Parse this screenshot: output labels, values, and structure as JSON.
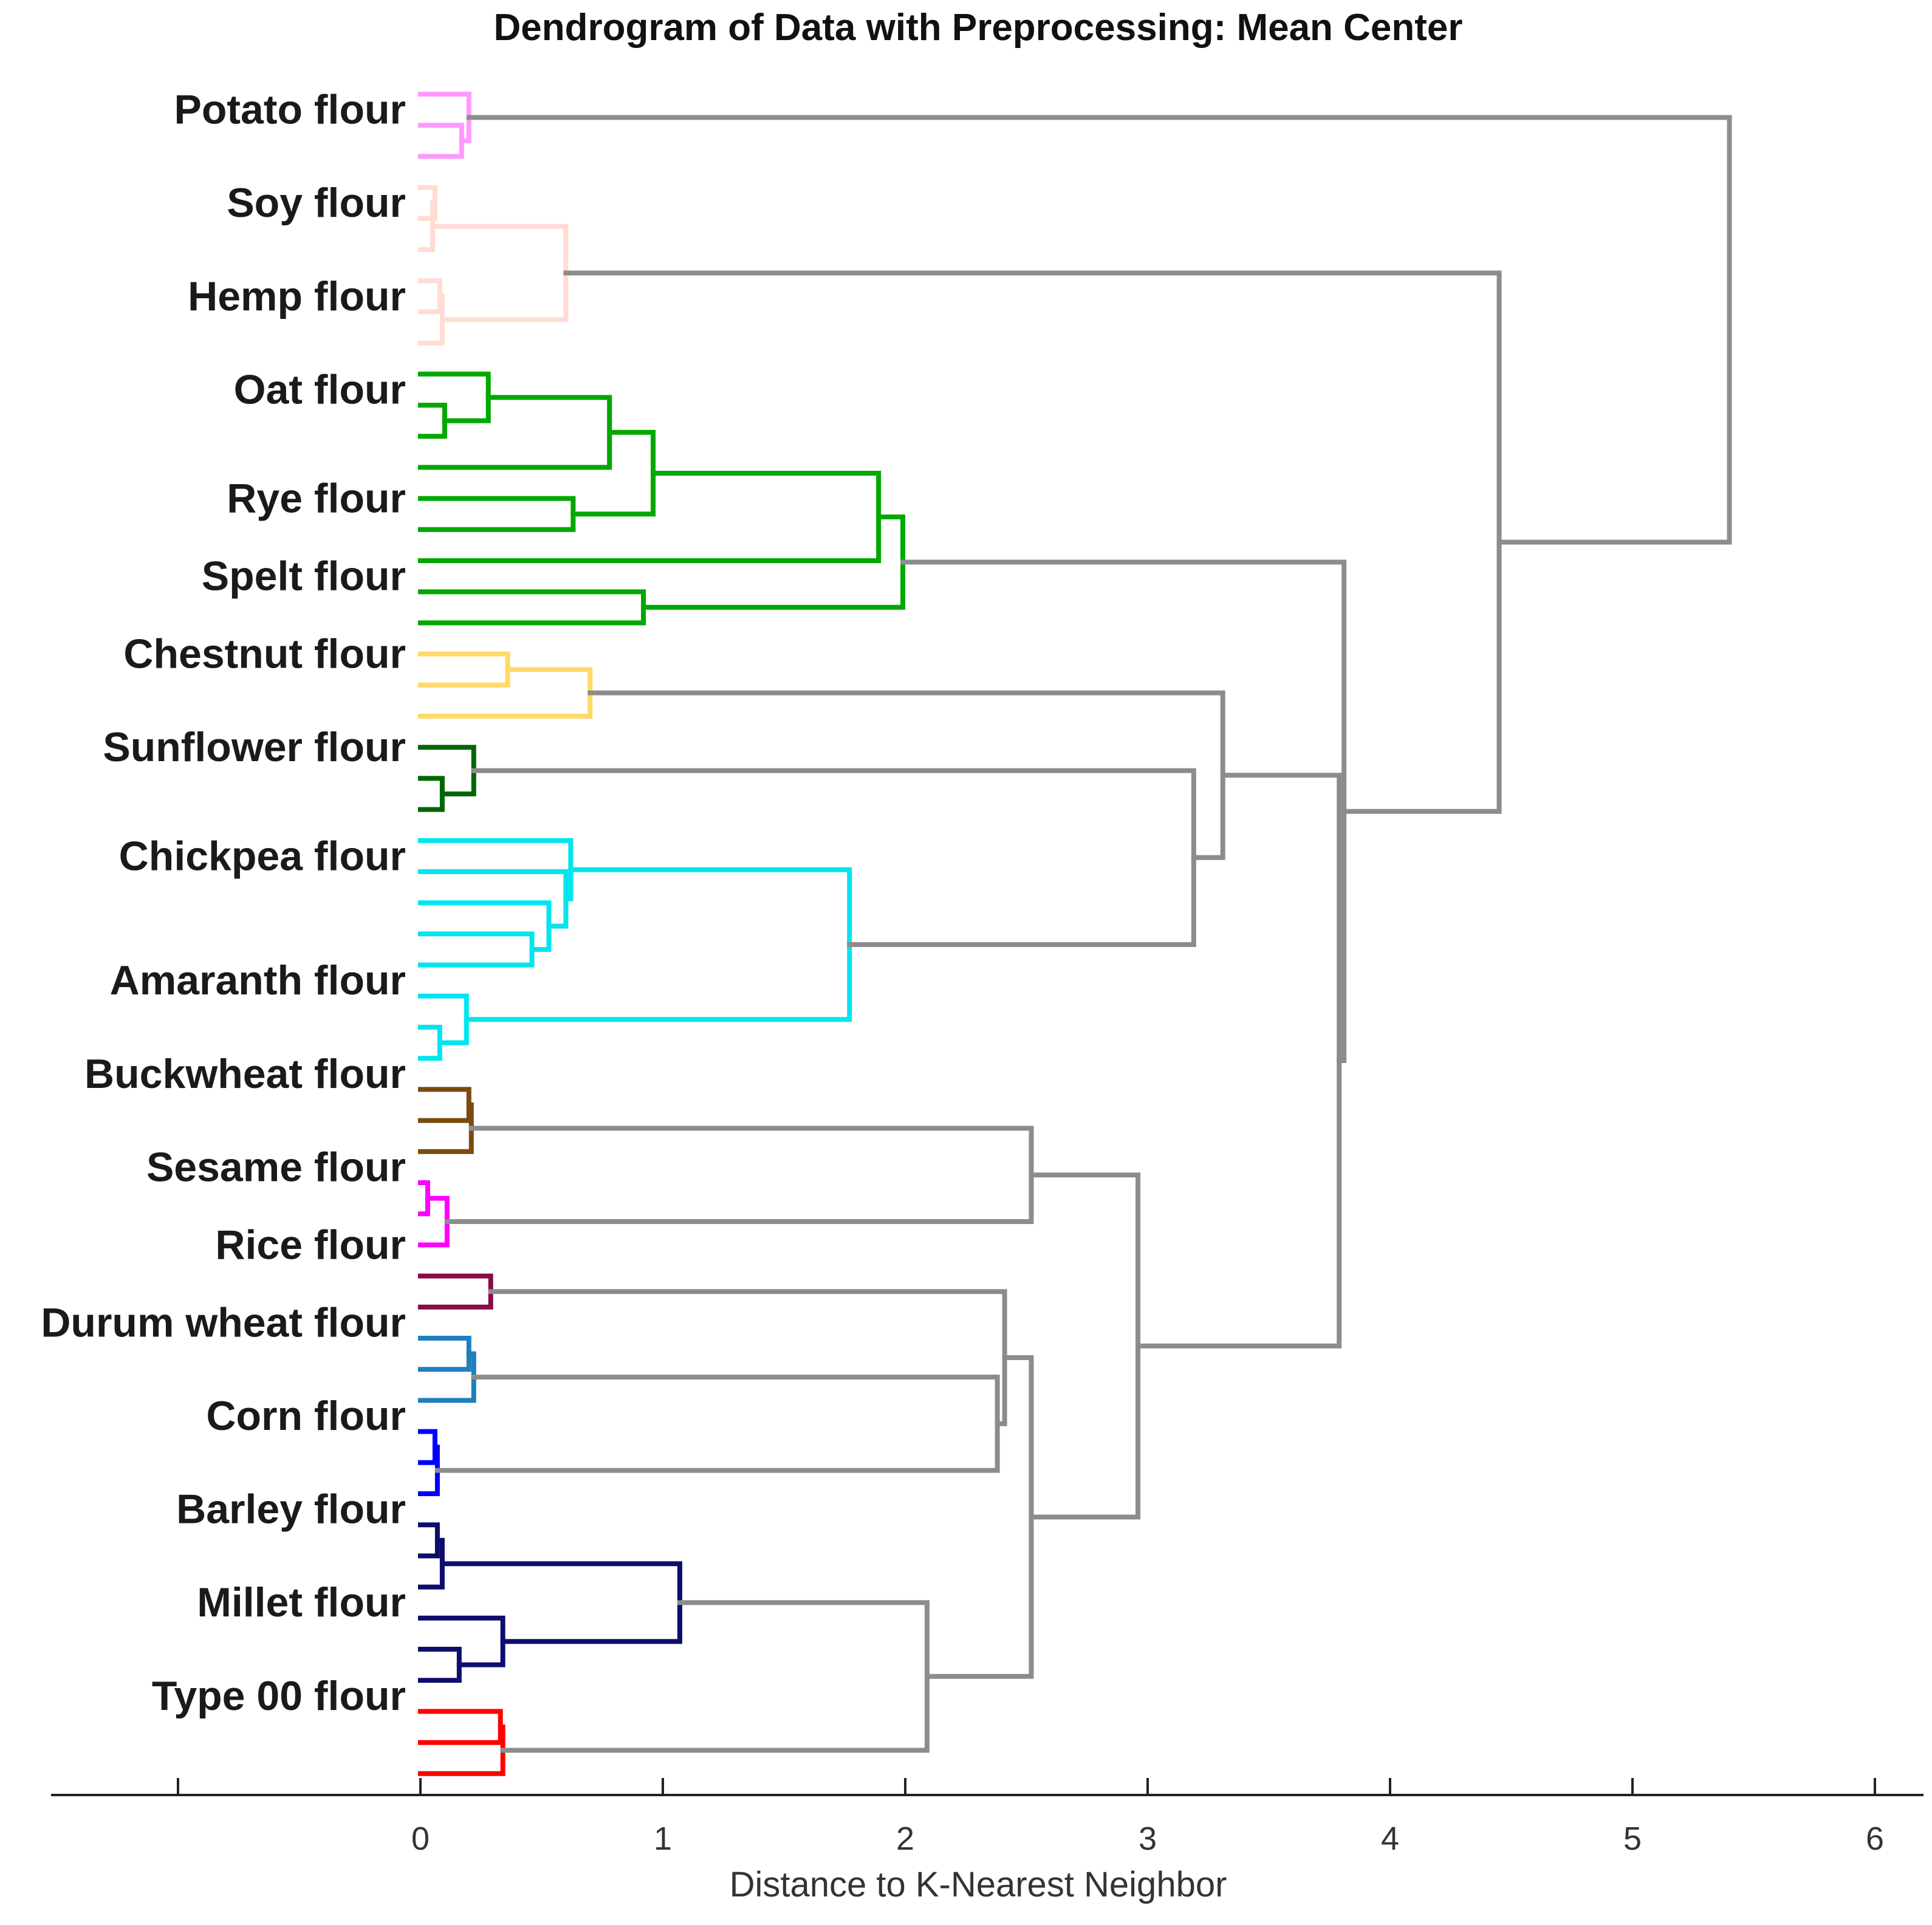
{
  "chart_data": {
    "type": "dendrogram",
    "title": "Dendrogram of Data with Preprocessing: Mean Center",
    "xlabel": "Distance to K-Nearest Neighbor",
    "ylabel": "",
    "xlim": [
      -1.5,
      6.2
    ],
    "xticks": [
      {
        "value": 0,
        "label": "0"
      },
      {
        "value": 1,
        "label": "1"
      },
      {
        "value": 2,
        "label": "2"
      },
      {
        "value": 3,
        "label": "3"
      },
      {
        "value": 4,
        "label": "4"
      },
      {
        "value": 5,
        "label": "5"
      },
      {
        "value": 6,
        "label": "6"
      }
    ],
    "link_color": "#8c8c8c",
    "leaf_labels": [
      {
        "text": "Potato flour",
        "leaf": 1.5
      },
      {
        "text": "Soy flour",
        "leaf": 4.5
      },
      {
        "text": "Hemp flour",
        "leaf": 7.5
      },
      {
        "text": "Oat flour",
        "leaf": 10.5
      },
      {
        "text": "Rye flour",
        "leaf": 14.0
      },
      {
        "text": "Spelt flour",
        "leaf": 16.5
      },
      {
        "text": "Chestnut flour",
        "leaf": 19.0
      },
      {
        "text": "Sunflower flour",
        "leaf": 22.0
      },
      {
        "text": "Chickpea flour",
        "leaf": 25.5
      },
      {
        "text": "Amaranth flour",
        "leaf": 29.5
      },
      {
        "text": "Buckwheat flour",
        "leaf": 32.5
      },
      {
        "text": "Sesame flour",
        "leaf": 35.5
      },
      {
        "text": "Rice flour",
        "leaf": 38.0
      },
      {
        "text": "Durum wheat flour",
        "leaf": 40.5
      },
      {
        "text": "Corn flour",
        "leaf": 43.5
      },
      {
        "text": "Barley flour",
        "leaf": 46.5
      },
      {
        "text": "Millet flour",
        "leaf": 49.5
      },
      {
        "text": "Type 00 flour",
        "leaf": 52.5
      }
    ],
    "clusters": [
      {
        "name": "Potato flour",
        "color": "#ff99ff",
        "leaves": [
          1,
          2,
          3
        ],
        "merges": [
          {
            "height": 0.17,
            "children": [
              {
                "leaf": 2
              },
              {
                "leaf": 3
              }
            ]
          },
          {
            "height": 0.2,
            "children": [
              {
                "leaf": 1
              },
              {
                "merge": 0
              }
            ]
          }
        ]
      },
      {
        "name": "Soy flour / Hemp flour",
        "color": "#ffdcd4",
        "leaves": [
          4,
          5,
          6,
          7,
          8,
          9
        ],
        "merges": [
          {
            "height": 0.06,
            "children": [
              {
                "leaf": 4
              },
              {
                "leaf": 5
              }
            ]
          },
          {
            "height": 0.05,
            "children": [
              {
                "merge": 0
              },
              {
                "leaf": 6
              }
            ]
          },
          {
            "height": 0.08,
            "children": [
              {
                "leaf": 7
              },
              {
                "leaf": 8
              }
            ]
          },
          {
            "height": 0.09,
            "children": [
              {
                "merge": 2
              },
              {
                "leaf": 9
              }
            ]
          },
          {
            "height": 0.6,
            "children": [
              {
                "merge": 1
              },
              {
                "merge": 3
              }
            ]
          }
        ]
      },
      {
        "name": "Oat / Rye / Spelt flour",
        "color": "#00a800",
        "leaves": [
          10,
          11,
          12,
          13,
          14,
          15,
          16,
          17,
          18
        ],
        "merges": [
          {
            "height": 0.1,
            "children": [
              {
                "leaf": 11
              },
              {
                "leaf": 12
              }
            ]
          },
          {
            "height": 0.28,
            "children": [
              {
                "leaf": 10
              },
              {
                "merge": 0
              }
            ]
          },
          {
            "height": 0.78,
            "children": [
              {
                "merge": 1
              },
              {
                "leaf": 13
              }
            ]
          },
          {
            "height": 0.63,
            "children": [
              {
                "leaf": 14
              },
              {
                "leaf": 15
              }
            ]
          },
          {
            "height": 0.96,
            "children": [
              {
                "merge": 2
              },
              {
                "merge": 3
              }
            ]
          },
          {
            "height": 1.89,
            "children": [
              {
                "merge": 4
              },
              {
                "leaf": 16
              }
            ]
          },
          {
            "height": 0.92,
            "children": [
              {
                "leaf": 17
              },
              {
                "leaf": 18
              }
            ]
          },
          {
            "height": 1.99,
            "children": [
              {
                "merge": 5
              },
              {
                "merge": 6
              }
            ]
          }
        ]
      },
      {
        "name": "Chestnut flour",
        "color": "#ffd966",
        "leaves": [
          19,
          20,
          21
        ],
        "merges": [
          {
            "height": 0.36,
            "children": [
              {
                "leaf": 19
              },
              {
                "leaf": 20
              }
            ]
          },
          {
            "height": 0.7,
            "children": [
              {
                "merge": 0
              },
              {
                "leaf": 21
              }
            ]
          }
        ]
      },
      {
        "name": "Sunflower flour",
        "color": "#006600",
        "leaves": [
          22,
          23,
          24
        ],
        "merges": [
          {
            "height": 0.09,
            "children": [
              {
                "leaf": 23
              },
              {
                "leaf": 24
              }
            ]
          },
          {
            "height": 0.22,
            "children": [
              {
                "leaf": 22
              },
              {
                "merge": 0
              }
            ]
          }
        ]
      },
      {
        "name": "Chickpea / Amaranth flour",
        "color": "#00e5ee",
        "leaves": [
          25,
          26,
          27,
          28,
          29,
          30,
          31,
          32
        ],
        "merges": [
          {
            "height": 0.46,
            "children": [
              {
                "leaf": 28
              },
              {
                "leaf": 29
              }
            ]
          },
          {
            "height": 0.53,
            "children": [
              {
                "leaf": 27
              },
              {
                "merge": 0
              }
            ]
          },
          {
            "height": 0.6,
            "children": [
              {
                "leaf": 26
              },
              {
                "merge": 1
              }
            ]
          },
          {
            "height": 0.62,
            "children": [
              {
                "leaf": 25
              },
              {
                "merge": 2
              }
            ]
          },
          {
            "height": 0.08,
            "children": [
              {
                "leaf": 31
              },
              {
                "leaf": 32
              }
            ]
          },
          {
            "height": 0.19,
            "children": [
              {
                "leaf": 30
              },
              {
                "merge": 4
              }
            ]
          },
          {
            "height": 1.77,
            "children": [
              {
                "merge": 3
              },
              {
                "merge": 5
              }
            ]
          }
        ]
      },
      {
        "name": "Buckwheat flour",
        "color": "#7a4a0e",
        "leaves": [
          33,
          34,
          35
        ],
        "merges": [
          {
            "height": 0.2,
            "children": [
              {
                "leaf": 33
              },
              {
                "leaf": 34
              }
            ]
          },
          {
            "height": 0.21,
            "children": [
              {
                "merge": 0
              },
              {
                "leaf": 35
              }
            ]
          }
        ]
      },
      {
        "name": "Sesame flour",
        "color": "#ff00ff",
        "leaves": [
          36,
          37,
          38
        ],
        "merges": [
          {
            "height": 0.03,
            "children": [
              {
                "leaf": 36
              },
              {
                "leaf": 37
              }
            ]
          },
          {
            "height": 0.11,
            "children": [
              {
                "merge": 0
              },
              {
                "leaf": 38
              }
            ]
          }
        ]
      },
      {
        "name": "Rice flour",
        "color": "#8b0a4a",
        "leaves": [
          39,
          40
        ],
        "merges": [
          {
            "height": 0.29,
            "children": [
              {
                "leaf": 39
              },
              {
                "leaf": 40
              }
            ]
          }
        ]
      },
      {
        "name": "Durum wheat flour",
        "color": "#1f7fbf",
        "leaves": [
          41,
          42,
          43
        ],
        "merges": [
          {
            "height": 0.2,
            "children": [
              {
                "leaf": 41
              },
              {
                "leaf": 42
              }
            ]
          },
          {
            "height": 0.22,
            "children": [
              {
                "merge": 0
              },
              {
                "leaf": 43
              }
            ]
          }
        ]
      },
      {
        "name": "Corn flour",
        "color": "#0000ff",
        "leaves": [
          44,
          45,
          46
        ],
        "merges": [
          {
            "height": 0.06,
            "children": [
              {
                "leaf": 44
              },
              {
                "leaf": 45
              }
            ]
          },
          {
            "height": 0.07,
            "children": [
              {
                "merge": 0
              },
              {
                "leaf": 46
              }
            ]
          }
        ]
      },
      {
        "name": "Barley flour",
        "color": "#0d0d6e",
        "leaves": [
          47,
          48,
          49
        ],
        "merges": [
          {
            "height": 0.07,
            "children": [
              {
                "leaf": 47
              },
              {
                "leaf": 48
              }
            ]
          },
          {
            "height": 0.09,
            "children": [
              {
                "merge": 0
              },
              {
                "leaf": 49
              }
            ]
          }
        ]
      },
      {
        "name": "Millet flour",
        "color": "#0d0d6e",
        "leaves": [
          50,
          51,
          52
        ],
        "merges": [
          {
            "height": 0.16,
            "children": [
              {
                "leaf": 51
              },
              {
                "leaf": 52
              }
            ]
          },
          {
            "height": 0.34,
            "children": [
              {
                "leaf": 50
              },
              {
                "merge": 0
              }
            ]
          }
        ]
      },
      {
        "name": "Type 00 flour",
        "color": "#ff0000",
        "leaves": [
          53,
          54,
          55
        ],
        "merges": [
          {
            "height": 0.33,
            "children": [
              {
                "leaf": 53
              },
              {
                "leaf": 54
              }
            ]
          },
          {
            "height": 0.34,
            "children": [
              {
                "merge": 0
              },
              {
                "leaf": 55
              }
            ]
          }
        ]
      }
    ],
    "links": [
      {
        "height": 1.07,
        "color": "#0d0d6e",
        "children": [
          {
            "cluster": 11
          },
          {
            "cluster": 12
          }
        ]
      },
      {
        "height": 2.09,
        "children": [
          {
            "link": 0
          },
          {
            "cluster": 13
          }
        ]
      },
      {
        "height": 2.38,
        "children": [
          {
            "cluster": 9
          },
          {
            "cluster": 10
          }
        ]
      },
      {
        "height": 2.41,
        "children": [
          {
            "cluster": 8
          },
          {
            "link": 2
          }
        ]
      },
      {
        "height": 2.52,
        "children": [
          {
            "link": 3
          },
          {
            "link": 1
          }
        ]
      },
      {
        "height": 2.52,
        "children": [
          {
            "cluster": 6
          },
          {
            "cluster": 7
          }
        ]
      },
      {
        "height": 2.96,
        "children": [
          {
            "link": 5
          },
          {
            "link": 4
          }
        ]
      },
      {
        "height": 3.19,
        "children": [
          {
            "cluster": 4
          },
          {
            "cluster": 5
          }
        ]
      },
      {
        "height": 3.31,
        "children": [
          {
            "cluster": 3
          },
          {
            "link": 7
          }
        ]
      },
      {
        "height": 3.79,
        "children": [
          {
            "link": 8
          },
          {
            "link": 6
          }
        ]
      },
      {
        "height": 3.81,
        "children": [
          {
            "cluster": 2
          },
          {
            "link": 9
          }
        ]
      },
      {
        "height": 4.45,
        "children": [
          {
            "cluster": 1
          },
          {
            "link": 10
          }
        ]
      },
      {
        "height": 5.4,
        "children": [
          {
            "cluster": 0
          },
          {
            "link": 11
          }
        ]
      }
    ]
  }
}
